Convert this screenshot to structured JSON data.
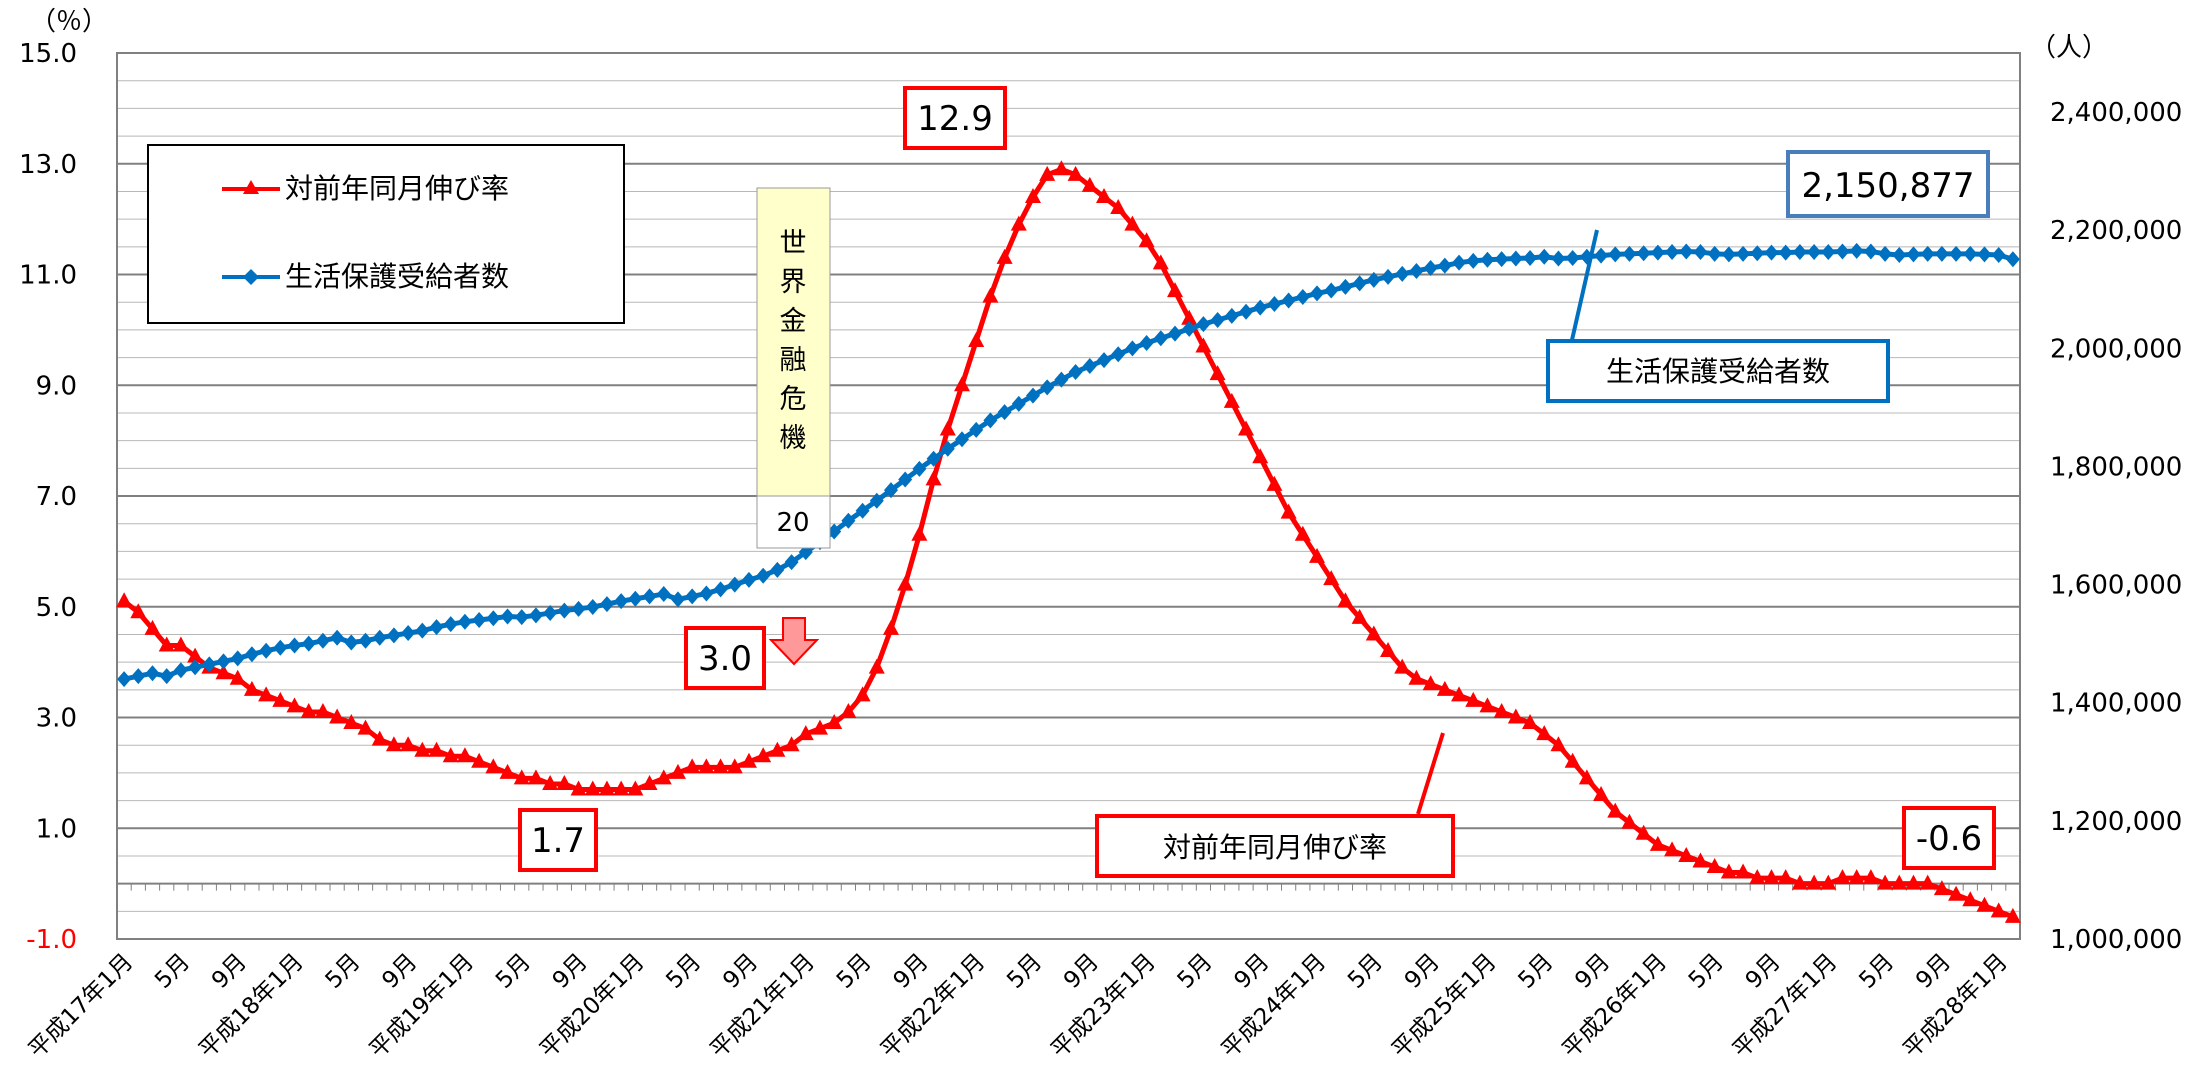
{
  "chart_data": {
    "type": "line",
    "left_axis": {
      "unit_label": "（％）",
      "ylim": [
        -1.0,
        15.0
      ],
      "ticks": [
        "15.0",
        "13.0",
        "11.0",
        "9.0",
        "7.0",
        "5.0",
        "3.0",
        "1.0",
        "-1.0"
      ],
      "negative_tick_color": "#ff0000"
    },
    "right_axis": {
      "unit_label": "（人）",
      "ylim": [
        1000000,
        2500000
      ],
      "ticks": [
        "2,400,000",
        "2,200,000",
        "2,000,000",
        "1,800,000",
        "1,600,000",
        "1,400,000",
        "1,200,000",
        "1,000,000"
      ]
    },
    "x_tick_labels": [
      "平成17年1月",
      "5月",
      "9月",
      "平成18年1月",
      "5月",
      "9月",
      "平成19年1月",
      "5月",
      "9月",
      "平成20年1月",
      "5月",
      "9月",
      "平成21年1月",
      "5月",
      "9月",
      "平成22年1月",
      "5月",
      "9月",
      "平成23年1月",
      "5月",
      "9月",
      "平成24年1月",
      "5月",
      "9月",
      "平成25年1月",
      "5月",
      "9月",
      "平成26年1月",
      "5月",
      "9月",
      "平成27年1月",
      "5月",
      "9月",
      "平成28年1月"
    ],
    "legend": {
      "position": "top-left",
      "items": [
        {
          "label": "対前年同月伸び率",
          "color": "#ff0000",
          "marker": "triangle"
        },
        {
          "label": "生活保護受給者数",
          "color": "#0070c0",
          "marker": "diamond"
        }
      ]
    },
    "series": [
      {
        "name": "対前年同月伸び率",
        "axis": "left",
        "color": "#ff0000",
        "marker": "triangle",
        "values": [
          5.1,
          4.9,
          4.6,
          4.3,
          4.3,
          4.1,
          3.9,
          3.8,
          3.7,
          3.5,
          3.4,
          3.3,
          3.2,
          3.1,
          3.1,
          3.0,
          2.9,
          2.8,
          2.6,
          2.5,
          2.5,
          2.4,
          2.4,
          2.3,
          2.3,
          2.2,
          2.1,
          2.0,
          1.9,
          1.9,
          1.8,
          1.8,
          1.7,
          1.7,
          1.7,
          1.7,
          1.7,
          1.8,
          1.9,
          2.0,
          2.1,
          2.1,
          2.1,
          2.1,
          2.2,
          2.3,
          2.4,
          2.5,
          2.7,
          2.8,
          2.9,
          3.1,
          3.4,
          3.9,
          4.6,
          5.4,
          6.3,
          7.3,
          8.2,
          9.0,
          9.8,
          10.6,
          11.3,
          11.9,
          12.4,
          12.8,
          12.9,
          12.8,
          12.6,
          12.4,
          12.2,
          11.9,
          11.6,
          11.2,
          10.7,
          10.2,
          9.7,
          9.2,
          8.7,
          8.2,
          7.7,
          7.2,
          6.7,
          6.3,
          5.9,
          5.5,
          5.1,
          4.8,
          4.5,
          4.2,
          3.9,
          3.7,
          3.6,
          3.5,
          3.4,
          3.3,
          3.2,
          3.1,
          3.0,
          2.9,
          2.7,
          2.5,
          2.2,
          1.9,
          1.6,
          1.3,
          1.1,
          0.9,
          0.7,
          0.6,
          0.5,
          0.4,
          0.3,
          0.2,
          0.2,
          0.1,
          0.1,
          0.1,
          0.0,
          0.0,
          0.0,
          0.1,
          0.1,
          0.1,
          0.0,
          0.0,
          0.0,
          0.0,
          -0.1,
          -0.2,
          -0.3,
          -0.4,
          -0.5,
          -0.6
        ]
      },
      {
        "name": "生活保護受給者数",
        "axis": "right",
        "color": "#0070c0",
        "marker": "diamond",
        "values": [
          1440000,
          1445000,
          1450000,
          1445000,
          1455000,
          1460000,
          1465000,
          1470000,
          1475000,
          1482000,
          1488000,
          1493000,
          1497000,
          1500000,
          1505000,
          1510000,
          1502000,
          1505000,
          1510000,
          1514000,
          1518000,
          1522000,
          1528000,
          1533000,
          1537000,
          1540000,
          1543000,
          1546000,
          1545000,
          1548000,
          1552000,
          1556000,
          1559000,
          1562000,
          1567000,
          1572000,
          1576000,
          1580000,
          1584000,
          1575000,
          1580000,
          1585000,
          1592000,
          1600000,
          1608000,
          1615000,
          1625000,
          1638000,
          1655000,
          1672000,
          1690000,
          1708000,
          1725000,
          1742000,
          1760000,
          1778000,
          1796000,
          1813000,
          1830000,
          1846000,
          1862000,
          1878000,
          1892000,
          1906000,
          1920000,
          1934000,
          1947000,
          1960000,
          1970000,
          1980000,
          1990000,
          2000000,
          2009000,
          2017000,
          2025000,
          2033000,
          2041000,
          2048000,
          2055000,
          2062000,
          2069000,
          2075000,
          2081000,
          2087000,
          2093000,
          2098000,
          2104000,
          2110000,
          2116000,
          2121000,
          2126000,
          2131000,
          2136000,
          2140000,
          2145000,
          2148000,
          2150000,
          2151000,
          2152000,
          2153000,
          2155000,
          2152000,
          2153000,
          2155000,
          2157000,
          2159000,
          2160000,
          2161000,
          2162000,
          2163000,
          2164000,
          2163000,
          2160000,
          2159000,
          2160000,
          2161000,
          2162000,
          2162000,
          2163000,
          2163000,
          2163000,
          2164000,
          2165000,
          2164000,
          2160000,
          2158000,
          2159000,
          2160000,
          2160000,
          2160000,
          2160000,
          2159000,
          2158000,
          2150877
        ]
      }
    ],
    "annotations": {
      "crisis_label": "世界金融危機",
      "crisis_number": "20",
      "callout_min": "1.7",
      "callout_crisis_point": "3.0",
      "callout_peak": "12.9",
      "callout_latest_rate": "-0.6",
      "callout_latest_count": "2,150,877",
      "series_label_count": "生活保護受給者数",
      "series_label_rate": "対前年同月伸び率"
    },
    "grid": true
  }
}
